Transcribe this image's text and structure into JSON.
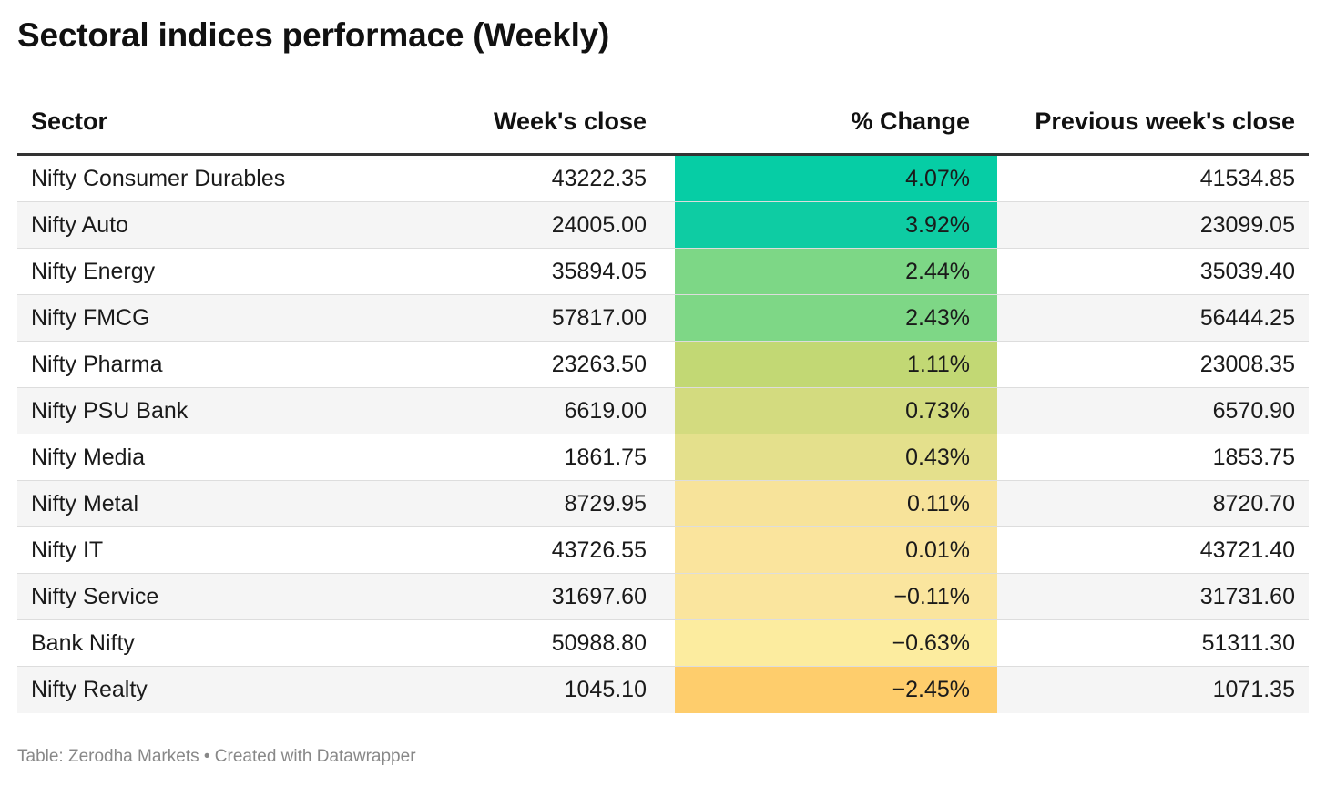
{
  "title": "Sectoral indices performace (Weekly)",
  "footer": "Table: Zerodha Markets • Created with Datawrapper",
  "chart_data": {
    "type": "table",
    "columns": [
      "Sector",
      "Week's close",
      "% Change",
      "Previous week's close"
    ],
    "rows": [
      {
        "sector": "Nifty Consumer Durables",
        "close": "43222.35",
        "change": "4.07%",
        "prev": "41534.85",
        "change_value": 4.07
      },
      {
        "sector": "Nifty Auto",
        "close": "24005.00",
        "change": "3.92%",
        "prev": "23099.05",
        "change_value": 3.92
      },
      {
        "sector": "Nifty Energy",
        "close": "35894.05",
        "change": "2.44%",
        "prev": "35039.40",
        "change_value": 2.44
      },
      {
        "sector": "Nifty FMCG",
        "close": "57817.00",
        "change": "2.43%",
        "prev": "56444.25",
        "change_value": 2.43
      },
      {
        "sector": "Nifty Pharma",
        "close": "23263.50",
        "change": "1.11%",
        "prev": "23008.35",
        "change_value": 1.11
      },
      {
        "sector": "Nifty PSU Bank",
        "close": "6619.00",
        "change": "0.73%",
        "prev": "6570.90",
        "change_value": 0.73
      },
      {
        "sector": "Nifty Media",
        "close": "1861.75",
        "change": "0.43%",
        "prev": "1853.75",
        "change_value": 0.43
      },
      {
        "sector": "Nifty Metal",
        "close": "8729.95",
        "change": "0.11%",
        "prev": "8720.70",
        "change_value": 0.11
      },
      {
        "sector": "Nifty IT",
        "close": "43726.55",
        "change": "0.01%",
        "prev": "43721.40",
        "change_value": 0.01
      },
      {
        "sector": "Nifty Service",
        "close": "31697.60",
        "change": "−0.11%",
        "prev": "31731.60",
        "change_value": -0.11
      },
      {
        "sector": "Bank Nifty",
        "close": "50988.80",
        "change": "−0.63%",
        "prev": "51311.30",
        "change_value": -0.63
      },
      {
        "sector": "Nifty Realty",
        "close": "1045.10",
        "change": "−2.45%",
        "prev": "1071.35",
        "change_value": -2.45
      }
    ],
    "heatmap_colors": {
      "4.07%": "#06cda5",
      "3.92%": "#0ecca3",
      "2.44%": "#7dd786",
      "2.43%": "#7ed786",
      "1.11%": "#c2d874",
      "0.73%": "#d3db7f",
      "0.43%": "#e4e08c",
      "0.11%": "#f7e39a",
      "0.01%": "#fae49d",
      "−0.11%": "#fae59e",
      "−0.63%": "#fcec9f",
      "−2.45%": "#fecd6c"
    }
  }
}
